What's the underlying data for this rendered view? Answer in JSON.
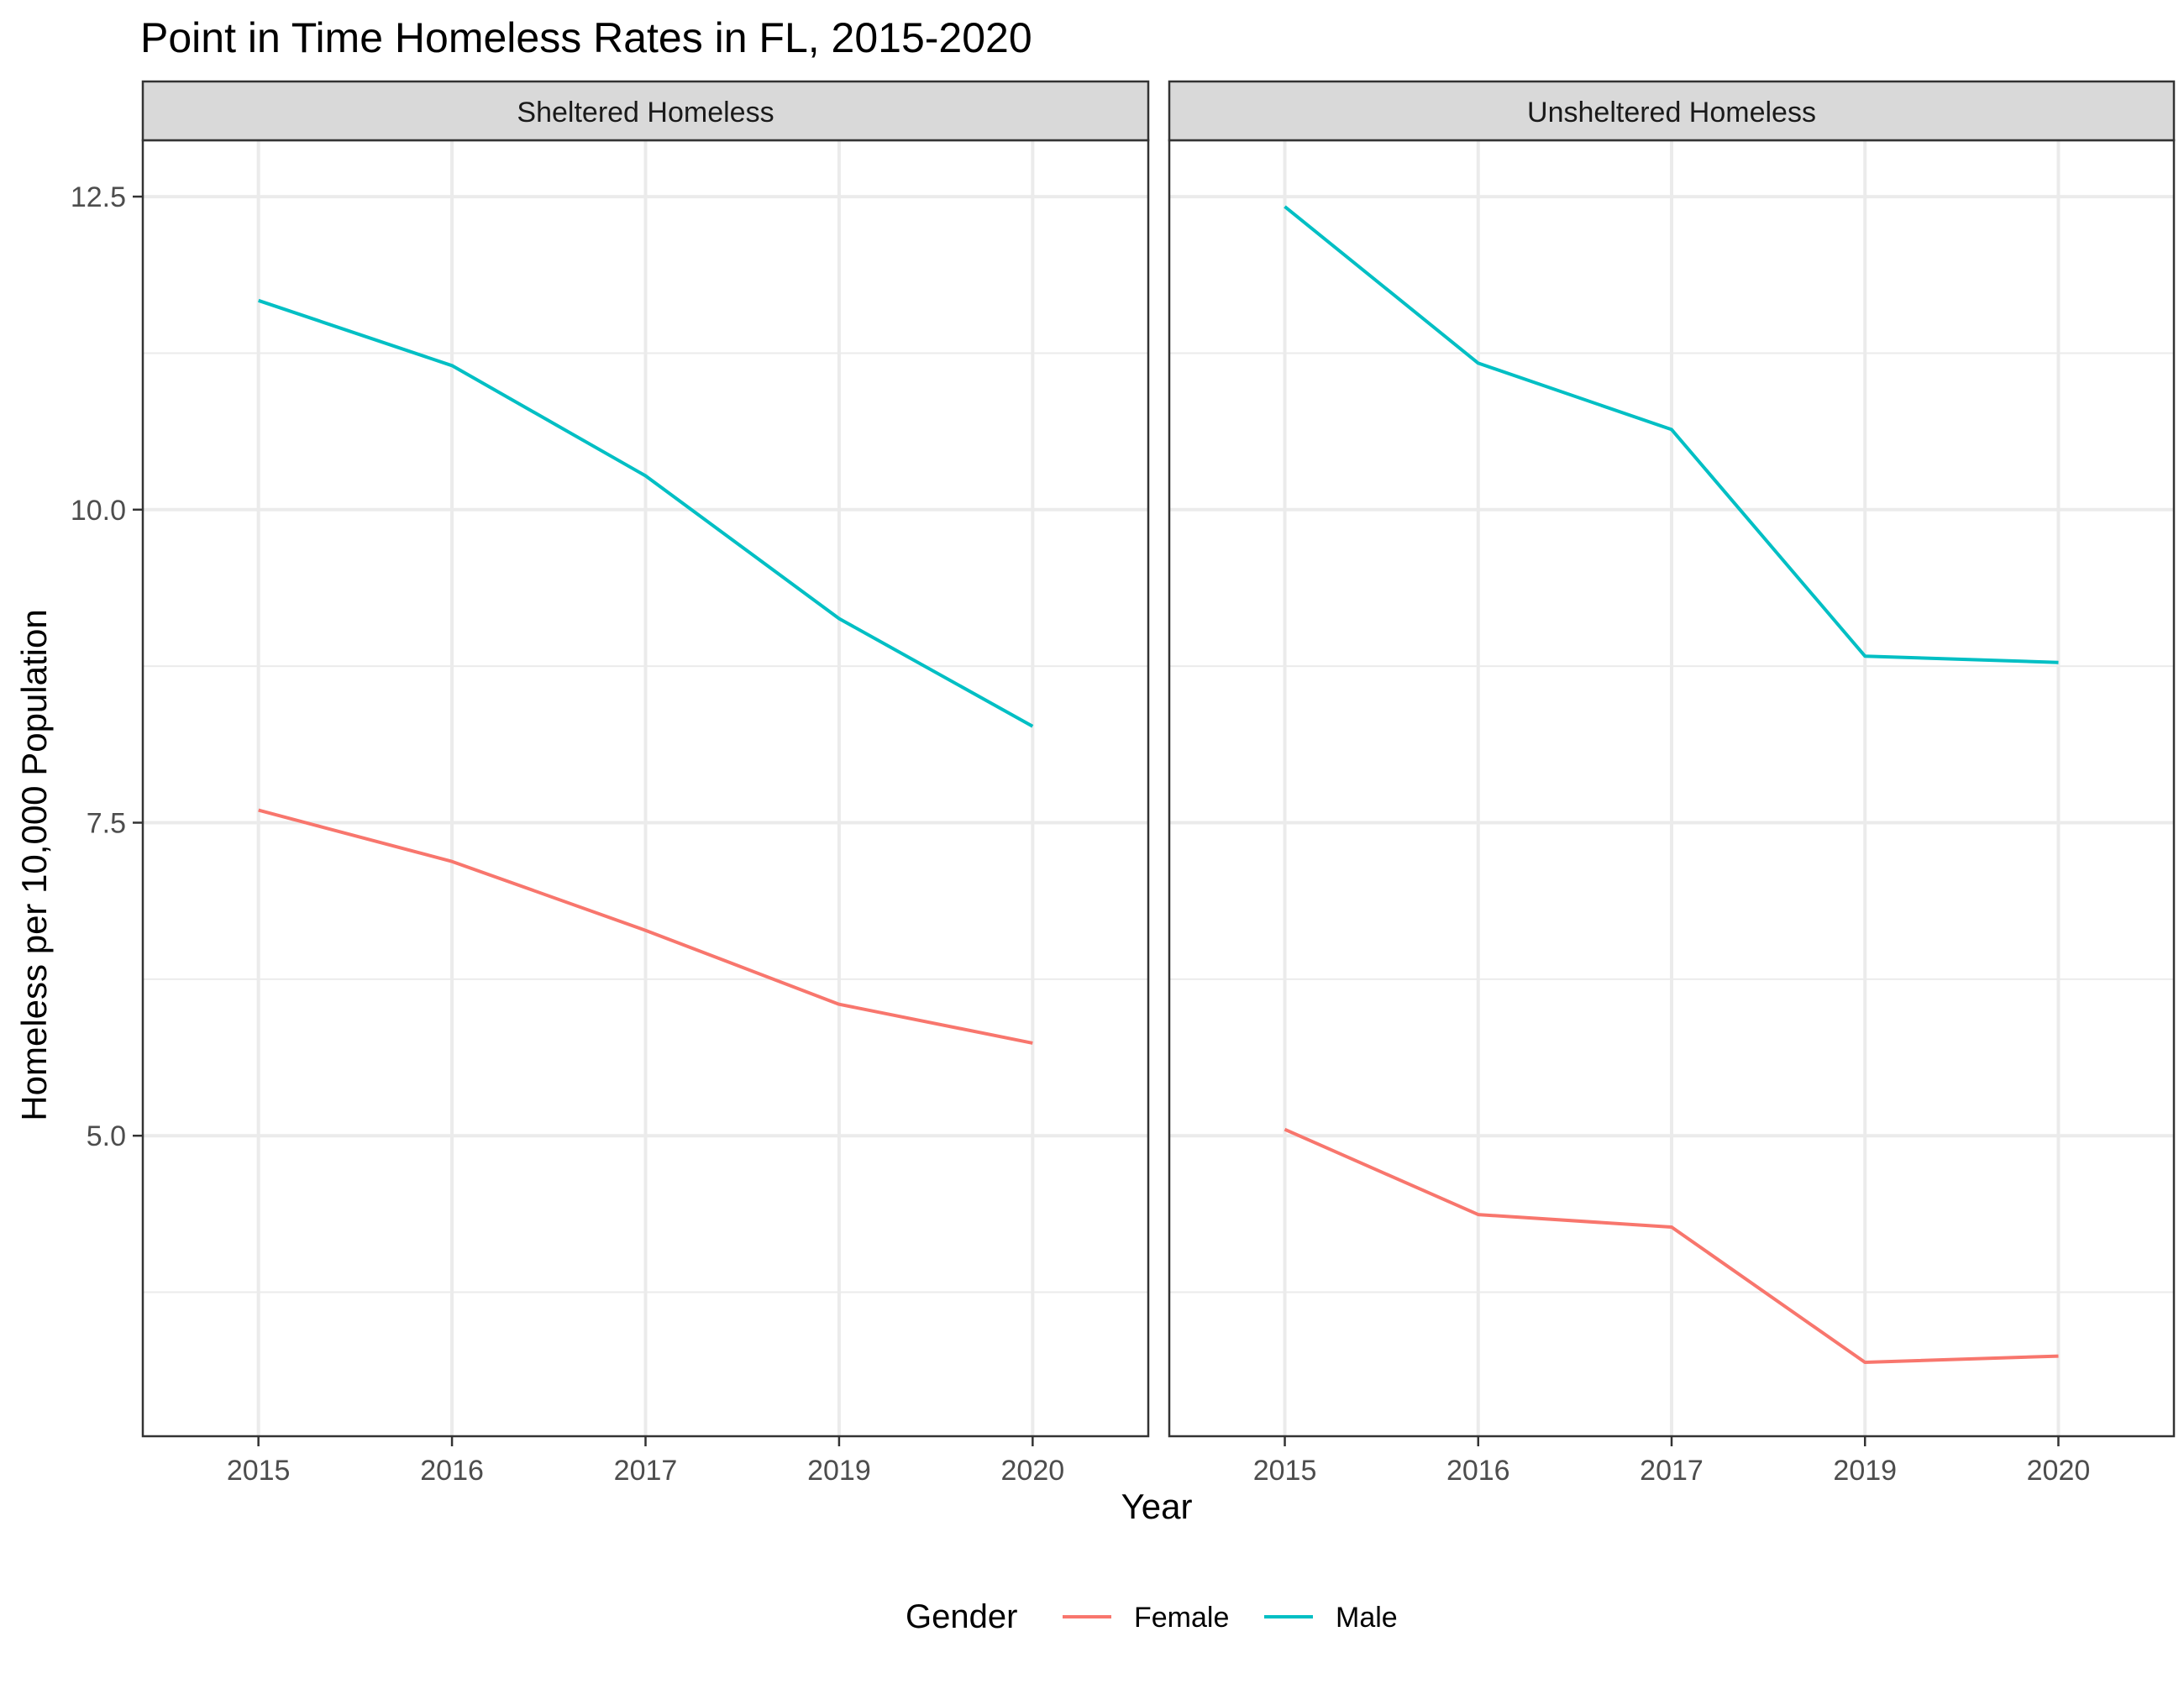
{
  "chart_data": {
    "type": "line",
    "title": "Point in Time Homeless Rates in FL, 2015-2020",
    "xlabel": "Year",
    "ylabel": "Homeless per 10,000 Population",
    "categories": [
      "2015",
      "2016",
      "2017",
      "2019",
      "2020"
    ],
    "ylim": [
      2.6,
      12.95
    ],
    "yticks": [
      5.0,
      7.5,
      10.0,
      12.5
    ],
    "ytick_labels": [
      "5.0",
      "7.5",
      "10.0",
      "12.5"
    ],
    "grid": true,
    "legend": {
      "title": "Gender",
      "position": "bottom",
      "entries": [
        "Female",
        "Male"
      ]
    },
    "colors": {
      "Female": "#F8766D",
      "Male": "#00BFC4"
    },
    "facets": [
      {
        "label": "Sheltered Homeless",
        "series": [
          {
            "name": "Female",
            "values": [
              7.6,
              7.19,
              6.64,
              6.05,
              5.74
            ]
          },
          {
            "name": "Male",
            "values": [
              11.67,
              11.15,
              10.27,
              9.13,
              8.27
            ]
          }
        ]
      },
      {
        "label": "Unsheltered Homeless",
        "series": [
          {
            "name": "Female",
            "values": [
              5.05,
              4.37,
              4.27,
              3.19,
              3.24
            ]
          },
          {
            "name": "Male",
            "values": [
              12.42,
              11.17,
              10.64,
              8.83,
              8.78
            ]
          }
        ]
      }
    ]
  }
}
